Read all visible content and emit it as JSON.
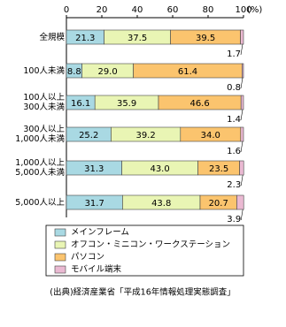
{
  "chart_data": {
    "type": "stacked-bar-horizontal",
    "categories": [
      "全規模",
      "100人未満",
      "100人以上\n300人未満",
      "300人以上\n1,000人未満",
      "1,000人以上\n5,000人未満",
      "5,000人以上"
    ],
    "series": [
      {
        "name": "メインフレーム",
        "color": "#a9d9e3",
        "values": [
          21.3,
          8.8,
          16.1,
          25.2,
          31.3,
          31.7
        ],
        "value_labels": [
          "21.3",
          "8.8",
          "16.1",
          "25.2",
          "31.3",
          "31.7"
        ]
      },
      {
        "name": "オフコン・ミニコン・ワークステーション",
        "color": "#e9f5b4",
        "values": [
          37.5,
          29,
          35.9,
          39.2,
          43,
          43.8
        ],
        "value_labels": [
          "37.5",
          "29.0",
          "35.9",
          "39.2",
          "43.0",
          "43.8"
        ]
      },
      {
        "name": "パソコン",
        "color": "#fbc46e",
        "values": [
          39.5,
          61.4,
          46.6,
          34,
          23.5,
          20.7
        ],
        "value_labels": [
          "39.5",
          "61.4",
          "46.6",
          "34.0",
          "23.5",
          "20.7"
        ]
      },
      {
        "name": "モバイル端末",
        "color": "#eab9d2",
        "values": [
          1.7,
          0.8,
          1.4,
          1.6,
          2.3,
          3.9
        ],
        "value_labels": [
          "1.7",
          "0.8",
          "1.4",
          "1.6",
          "2.3",
          "3.9"
        ]
      }
    ],
    "xlim": [
      0,
      100
    ],
    "xticks": [
      0,
      20,
      40,
      60,
      80,
      100
    ],
    "x_unit": "(%)",
    "source": "(出典)経済産業省「平成16年情報処理実態調査」"
  }
}
